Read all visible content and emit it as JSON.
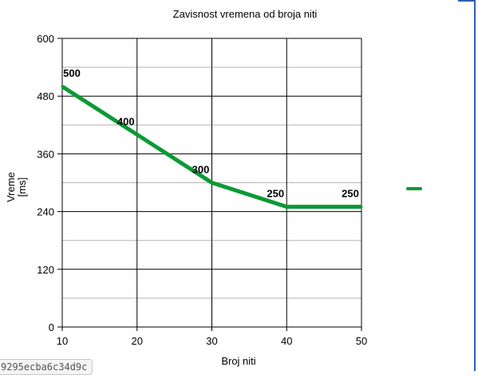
{
  "chart_data": {
    "type": "line",
    "title": "Zavisnost vremena od broja niti",
    "xlabel": "Broj niti",
    "ylabel": [
      "Vreme",
      "[ms]"
    ],
    "xlim": [
      10,
      50
    ],
    "ylim": [
      0,
      600
    ],
    "x_ticks": [
      "10",
      "20",
      "30",
      "40",
      "50"
    ],
    "y_ticks": [
      "0",
      "120",
      "240",
      "360",
      "480",
      "600"
    ],
    "grid": true,
    "legend": "right",
    "series": [
      {
        "x": [
          10,
          20,
          30,
          40,
          50
        ],
        "values": [
          500,
          400,
          300,
          250,
          250
        ],
        "data_labels": [
          "500",
          "400",
          "300",
          "250",
          "250"
        ],
        "color": "#0b9a34"
      }
    ]
  },
  "hash_label": "9295ecba6c34d9c",
  "colors": {
    "frame_edge": "#2f5fb3",
    "major_grid": "#000000",
    "minor_grid": "#b3b3b3"
  }
}
